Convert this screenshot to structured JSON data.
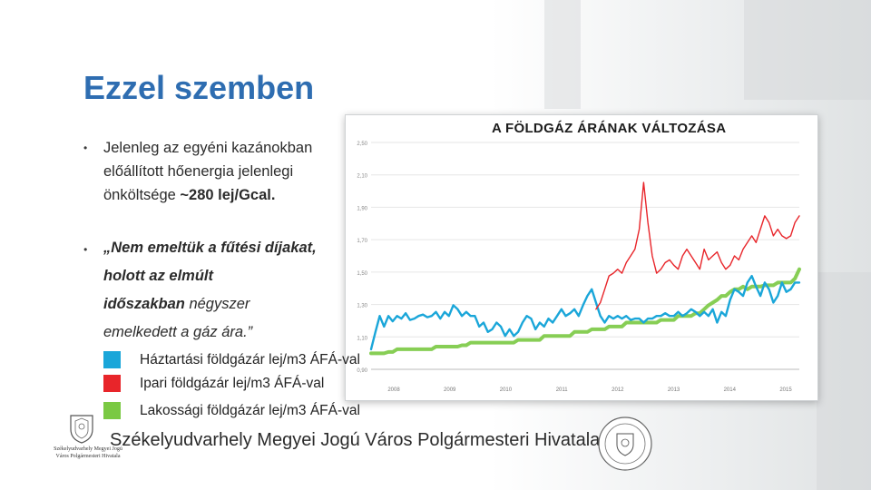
{
  "title": "Ezzel szemben",
  "bullets": [
    {
      "line1": "Jelenleg az egyéni kazánokban",
      "line2": "előállított hőenergia jelenlegi",
      "line3_pre": "önköltsége ",
      "line3_bold": "~280 lej/Gcal."
    },
    {
      "line1": "„Nem emeltük a fűtési díjakat,",
      "line2": "holott az elmúlt",
      "line3_bold": "időszakban",
      "line3_rest": " négyszer",
      "line4": "emelkedett a gáz ára.”"
    }
  ],
  "legend": [
    {
      "label": "Háztartási földgázár lej/m3 ÁFÁ-val",
      "color": "#1aa6d9"
    },
    {
      "label": "Ipari földgázár lej/m3 ÁFÁ-val",
      "color": "#e8252a"
    },
    {
      "label": "Lakossági földgázár lej/m3 ÁFÁ-val",
      "color": "#7ac943"
    }
  ],
  "footer": "Székelyudvarhely Megyei Jogú Város Polgármesteri Hivatala",
  "logo_text": "Székelyudvarhely Megyei Jogú Város Polgármesteri Hivatala",
  "chart_data": {
    "type": "line",
    "title": "A FÖLDGÁZ ÁRÁNAK VÁLTOZÁSA",
    "ylim": [
      0.9,
      2.6
    ],
    "yticks": [
      "2,50",
      "2,10",
      "1,90",
      "1,70",
      "1,50",
      "1,30",
      "1,10",
      "0,90"
    ],
    "year_labels": [
      "2008",
      "2009",
      "2010",
      "2011",
      "2012",
      "2013",
      "2014",
      "2015"
    ],
    "x": [
      0,
      1,
      2,
      3,
      4,
      5,
      6,
      7,
      8,
      9,
      10,
      11,
      12,
      13,
      14,
      15,
      16,
      17,
      18,
      19,
      20,
      21,
      22,
      23,
      24,
      25,
      26,
      27,
      28,
      29,
      30,
      31,
      32,
      33,
      34,
      35,
      36,
      37,
      38,
      39,
      40,
      41,
      42,
      43,
      44,
      45,
      46,
      47,
      48,
      49,
      50,
      51,
      52,
      53,
      54,
      55,
      56,
      57,
      58,
      59,
      60,
      61,
      62,
      63,
      64,
      65,
      66,
      67,
      68,
      69,
      70,
      71,
      72,
      73,
      74,
      75,
      76,
      77,
      78,
      79,
      80,
      81,
      82,
      83,
      84,
      85,
      86,
      87,
      88,
      89,
      90,
      91,
      92,
      93,
      94,
      95,
      96,
      97,
      98,
      99
    ],
    "series": [
      {
        "name": "Háztartási földgázár lej/m3 ÁFÁ-val",
        "color": "#1aa6d9",
        "values": [
          1.05,
          1.18,
          1.3,
          1.22,
          1.3,
          1.26,
          1.3,
          1.28,
          1.32,
          1.27,
          1.28,
          1.3,
          1.31,
          1.29,
          1.3,
          1.33,
          1.28,
          1.33,
          1.3,
          1.38,
          1.35,
          1.3,
          1.33,
          1.3,
          1.3,
          1.22,
          1.25,
          1.18,
          1.2,
          1.25,
          1.22,
          1.15,
          1.2,
          1.15,
          1.18,
          1.25,
          1.3,
          1.28,
          1.2,
          1.25,
          1.22,
          1.28,
          1.25,
          1.3,
          1.35,
          1.3,
          1.32,
          1.35,
          1.3,
          1.38,
          1.45,
          1.5,
          1.4,
          1.3,
          1.25,
          1.3,
          1.28,
          1.3,
          1.28,
          1.3,
          1.27,
          1.28,
          1.28,
          1.25,
          1.28,
          1.28,
          1.3,
          1.3,
          1.32,
          1.3,
          1.3,
          1.33,
          1.3,
          1.32,
          1.35,
          1.33,
          1.3,
          1.33,
          1.3,
          1.35,
          1.25,
          1.33,
          1.3,
          1.42,
          1.5,
          1.48,
          1.45,
          1.55,
          1.6,
          1.52,
          1.45,
          1.55,
          1.5,
          1.4,
          1.45,
          1.55,
          1.48,
          1.5,
          1.55,
          1.55
        ]
      },
      {
        "name": "Ipari földgázár lej/m3 ÁFÁ-val",
        "color": "#e8252a",
        "values": [
          null,
          null,
          null,
          null,
          null,
          null,
          null,
          null,
          null,
          null,
          null,
          null,
          null,
          null,
          null,
          null,
          null,
          null,
          null,
          null,
          null,
          null,
          null,
          null,
          null,
          null,
          null,
          null,
          null,
          null,
          null,
          null,
          null,
          null,
          null,
          null,
          null,
          null,
          null,
          null,
          null,
          null,
          null,
          null,
          null,
          null,
          null,
          null,
          null,
          null,
          null,
          null,
          1.35,
          1.4,
          1.5,
          1.6,
          1.62,
          1.65,
          1.62,
          1.7,
          1.75,
          1.8,
          1.95,
          2.3,
          2.0,
          1.75,
          1.62,
          1.65,
          1.7,
          1.72,
          1.68,
          1.65,
          1.75,
          1.8,
          1.75,
          1.7,
          1.65,
          1.8,
          1.72,
          1.75,
          1.78,
          1.7,
          1.65,
          1.68,
          1.75,
          1.72,
          1.8,
          1.85,
          1.9,
          1.85,
          1.95,
          2.05,
          2.0,
          1.9,
          1.95,
          1.9,
          1.88,
          1.9,
          2.0,
          2.05
        ]
      },
      {
        "name": "Lakossági földgázár lej/m3 ÁFÁ-val",
        "color": "#7ac943",
        "values": [
          1.02,
          1.02,
          1.02,
          1.02,
          1.03,
          1.03,
          1.05,
          1.05,
          1.05,
          1.05,
          1.05,
          1.05,
          1.05,
          1.05,
          1.05,
          1.07,
          1.07,
          1.07,
          1.07,
          1.07,
          1.07,
          1.08,
          1.08,
          1.1,
          1.1,
          1.1,
          1.1,
          1.1,
          1.1,
          1.1,
          1.1,
          1.1,
          1.1,
          1.1,
          1.12,
          1.12,
          1.12,
          1.12,
          1.12,
          1.12,
          1.15,
          1.15,
          1.15,
          1.15,
          1.15,
          1.15,
          1.15,
          1.18,
          1.18,
          1.18,
          1.18,
          1.2,
          1.2,
          1.2,
          1.2,
          1.22,
          1.22,
          1.22,
          1.22,
          1.25,
          1.25,
          1.25,
          1.25,
          1.25,
          1.25,
          1.25,
          1.25,
          1.27,
          1.27,
          1.27,
          1.27,
          1.3,
          1.3,
          1.3,
          1.3,
          1.32,
          1.32,
          1.35,
          1.38,
          1.4,
          1.42,
          1.45,
          1.45,
          1.48,
          1.5,
          1.5,
          1.52,
          1.5,
          1.52,
          1.52,
          1.52,
          1.53,
          1.53,
          1.53,
          1.55,
          1.55,
          1.55,
          1.55,
          1.58,
          1.65
        ]
      }
    ]
  }
}
